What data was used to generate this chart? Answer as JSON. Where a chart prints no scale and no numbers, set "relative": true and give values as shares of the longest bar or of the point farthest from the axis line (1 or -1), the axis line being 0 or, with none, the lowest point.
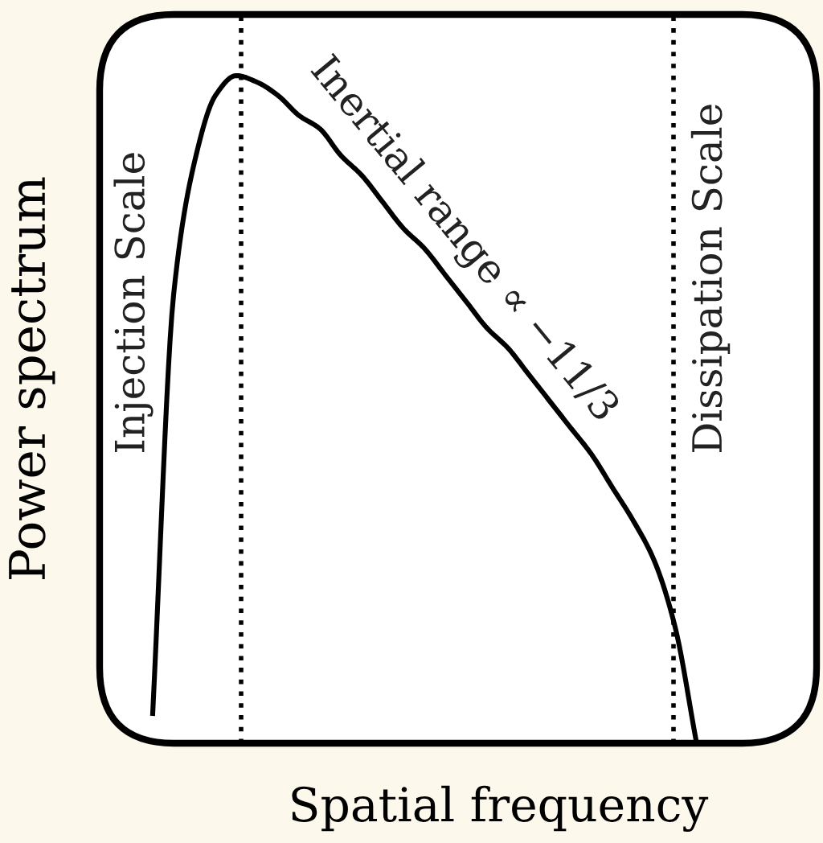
{
  "chart_data": {
    "type": "line",
    "relative": true,
    "xlabel": "Spatial frequency",
    "ylabel": "Power spectrum",
    "categories": [
      null,
      null,
      null,
      null,
      null,
      null,
      null,
      null,
      null,
      null,
      null,
      null,
      null,
      null,
      null,
      null,
      null,
      null,
      null,
      null,
      null,
      null,
      null,
      null,
      null,
      null,
      null
    ],
    "series": [
      {
        "color": "#000000",
        "values": [
          0.04,
          0.67,
          0.87,
          0.97,
          1.0,
          0.99,
          0.97,
          0.94,
          0.92,
          0.88,
          0.85,
          0.81,
          0.77,
          0.74,
          0.7,
          0.66,
          0.62,
          0.59,
          0.55,
          0.51,
          0.47,
          0.43,
          0.38,
          0.33,
          0.27,
          0.17,
          0.0
        ]
      }
    ],
    "annotations": [
      "Injection Scale",
      "Inertial range ∝ −11/3",
      "Dissipation Scale"
    ],
    "legend": false,
    "marker": "none",
    "line_style": "solid"
  }
}
